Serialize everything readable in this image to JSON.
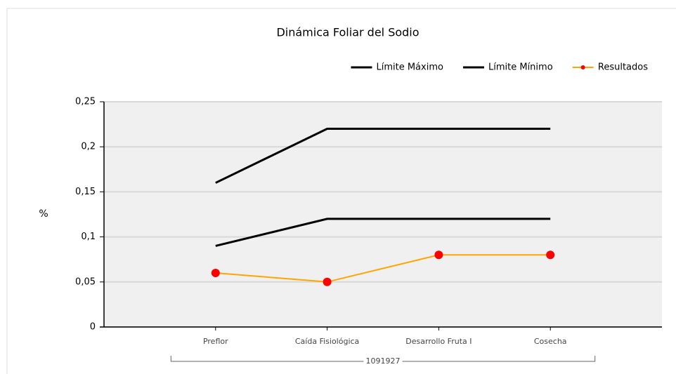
{
  "chart_data": {
    "type": "line",
    "title": "Dinámica Foliar del Sodio",
    "y_label": "%",
    "categories": [
      "Preflor",
      "Caída Fisiológica",
      "Desarrollo Fruta I",
      "Cosecha"
    ],
    "group_label": "1091927",
    "series": [
      {
        "name": "Límite Máximo",
        "color": "#000000",
        "values": [
          0.16,
          0.22,
          0.22,
          0.22
        ]
      },
      {
        "name": "Límite Mínimo",
        "color": "#000000",
        "values": [
          0.09,
          0.12,
          0.12,
          0.12
        ]
      },
      {
        "name": "Resultados",
        "color": "#ffa500",
        "marker_color": "#ff0000",
        "values": [
          0.06,
          0.05,
          0.08,
          0.08
        ]
      }
    ],
    "ylim": [
      0,
      0.25
    ],
    "yticks": [
      0,
      {
        "value": 0.05,
        "label": "0,05"
      },
      {
        "value": 0.1,
        "label": "0,1"
      },
      {
        "value": 0.15,
        "label": "0,15"
      },
      {
        "value": 0.2,
        "label": "0,2"
      },
      {
        "value": 0.25,
        "label": "0,25"
      }
    ],
    "grid": true,
    "legend": "top-right"
  }
}
